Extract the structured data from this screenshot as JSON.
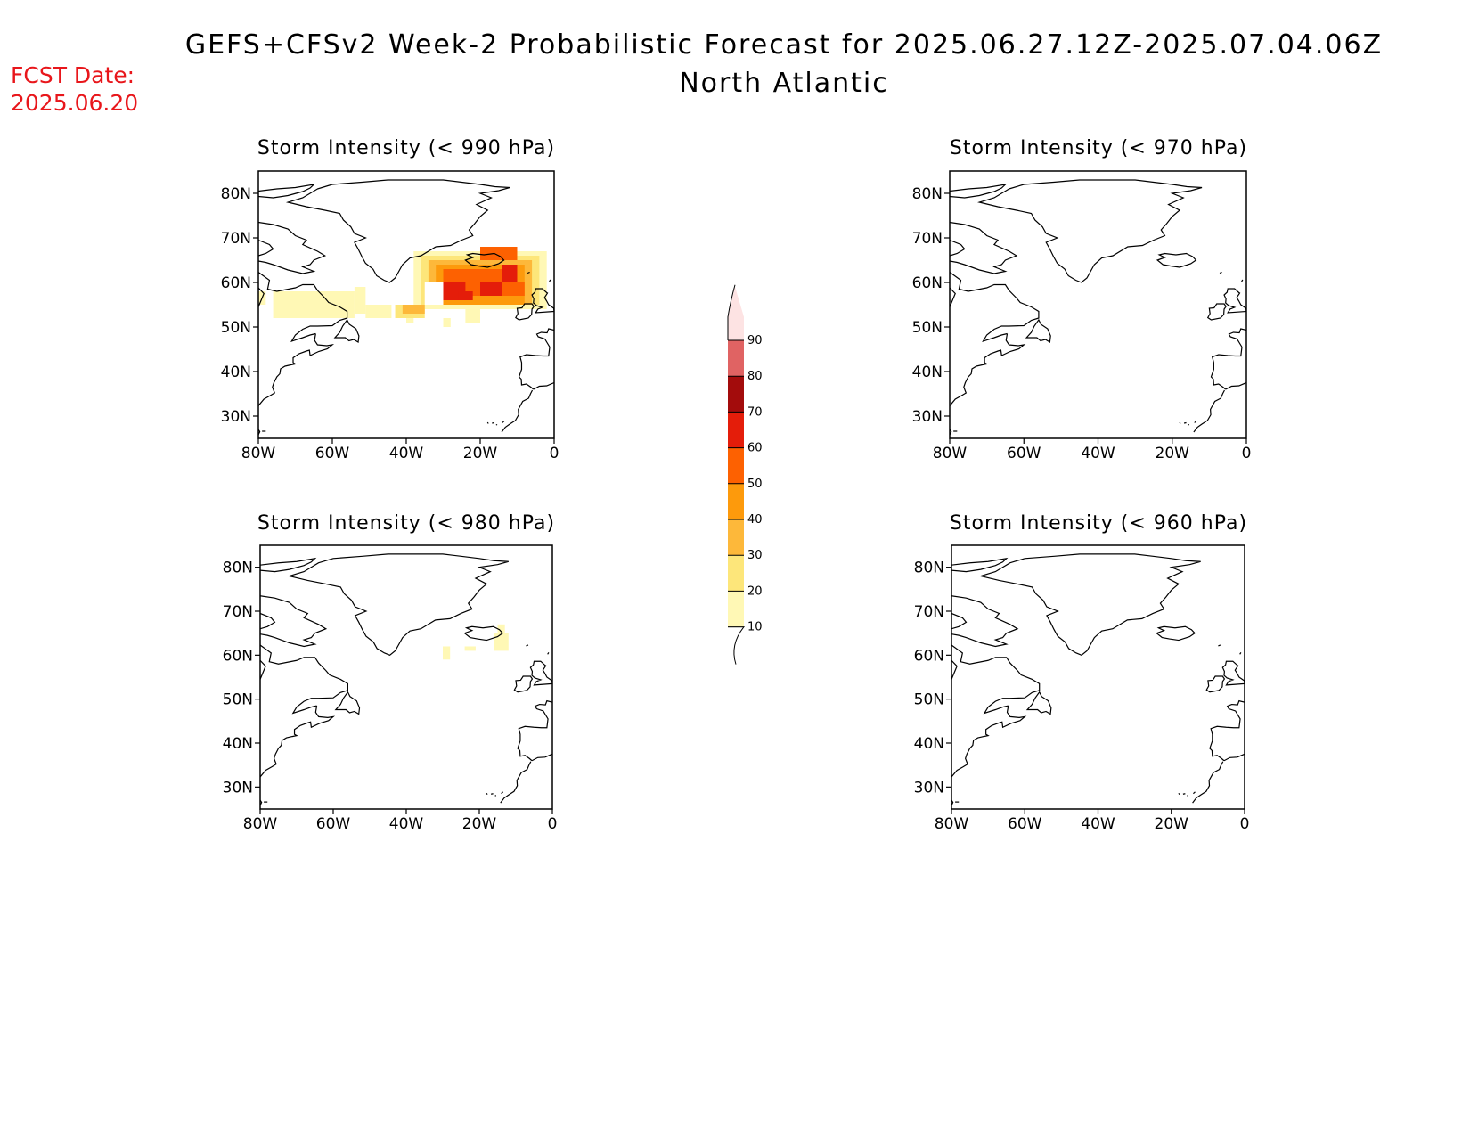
{
  "header": {
    "title_line1": "GEFS+CFSv2 Week-2 Probabilistic Forecast for 2025.06.27.12Z-2025.07.04.06Z",
    "title_line2": "North Atlantic",
    "fcst_label": "FCST Date:",
    "fcst_date": "2025.06.20",
    "fcst_color": "#e8161b"
  },
  "axes": {
    "lat_ticks": [
      "80N",
      "70N",
      "60N",
      "50N",
      "40N",
      "30N"
    ],
    "lat_values": [
      80,
      70,
      60,
      50,
      40,
      30
    ],
    "lon_ticks": [
      "80W",
      "60W",
      "40W",
      "20W",
      "0"
    ],
    "lon_values": [
      -80,
      -60,
      -40,
      -20,
      0
    ],
    "lon_range": [
      -80,
      0
    ],
    "lat_range": [
      25,
      85
    ]
  },
  "colorbar": {
    "levels": [
      "10",
      "20",
      "30",
      "40",
      "50",
      "60",
      "70",
      "80",
      "90"
    ],
    "colors": [
      "#fff8b5",
      "#fde67a",
      "#fdb83a",
      "#fd9a0c",
      "#fd6101",
      "#e41d0a",
      "#a30c0c",
      "#e06363",
      "#f4a8a8",
      "#fde3e3"
    ]
  },
  "panels": [
    {
      "id": "p990",
      "title": "Storm Intensity (< 990 hPa)",
      "cells": [
        {
          "lon": -80,
          "lat": 55,
          "w": 2,
          "h": 3,
          "level": 0
        },
        {
          "lon": -76,
          "lat": 52,
          "w": 22,
          "h": 6,
          "level": 0
        },
        {
          "lon": -54,
          "lat": 53,
          "w": 3,
          "h": 6,
          "level": 0
        },
        {
          "lon": -51,
          "lat": 52,
          "w": 7,
          "h": 3,
          "level": 0
        },
        {
          "lon": -40,
          "lat": 51,
          "w": 2,
          "h": 2,
          "level": 0
        },
        {
          "lon": -38,
          "lat": 54,
          "w": 36,
          "h": 13,
          "level": 0
        },
        {
          "lon": -24,
          "lat": 51,
          "w": 4,
          "h": 3,
          "level": 0
        },
        {
          "lon": -30,
          "lat": 50,
          "w": 2,
          "h": 2,
          "level": 0
        },
        {
          "lon": -36,
          "lat": 55,
          "w": 32,
          "h": 11,
          "level": 1
        },
        {
          "lon": -43,
          "lat": 52,
          "w": 8,
          "h": 3,
          "level": 1
        },
        {
          "lon": -34,
          "lat": 55,
          "w": 28,
          "h": 10,
          "level": 2
        },
        {
          "lon": -41,
          "lat": 53,
          "w": 6,
          "h": 2,
          "level": 2
        },
        {
          "lon": -32,
          "lat": 55,
          "w": 24,
          "h": 9,
          "level": 3
        },
        {
          "lon": -30,
          "lat": 57,
          "w": 20,
          "h": 6,
          "level": 4
        },
        {
          "lon": -20,
          "lat": 65,
          "w": 10,
          "h": 3,
          "level": 4
        },
        {
          "lon": -14,
          "lat": 57,
          "w": 6,
          "h": 3,
          "level": 4
        },
        {
          "lon": -30,
          "lat": 56,
          "w": 6,
          "h": 4,
          "level": 5
        },
        {
          "lon": -26,
          "lat": 56,
          "w": 4,
          "h": 2,
          "level": 5
        },
        {
          "lon": -20,
          "lat": 57,
          "w": 6,
          "h": 3,
          "level": 5
        },
        {
          "lon": -14,
          "lat": 60,
          "w": 4,
          "h": 4,
          "level": 5
        },
        {
          "lon": -35,
          "lat": 55,
          "w": 5,
          "h": 5,
          "level": -1
        }
      ]
    },
    {
      "id": "p980",
      "title": "Storm Intensity (< 980 hPa)",
      "cells": [
        {
          "lon": -30,
          "lat": 59,
          "w": 2,
          "h": 3,
          "level": 0
        },
        {
          "lon": -24,
          "lat": 61,
          "w": 3,
          "h": 1,
          "level": 0
        },
        {
          "lon": -16,
          "lat": 61,
          "w": 4,
          "h": 4,
          "level": 0
        },
        {
          "lon": -15,
          "lat": 64,
          "w": 2,
          "h": 3,
          "level": 0
        }
      ]
    },
    {
      "id": "p970",
      "title": "Storm Intensity (< 970 hPa)",
      "cells": []
    },
    {
      "id": "p960",
      "title": "Storm Intensity (< 960 hPa)",
      "cells": []
    }
  ]
}
